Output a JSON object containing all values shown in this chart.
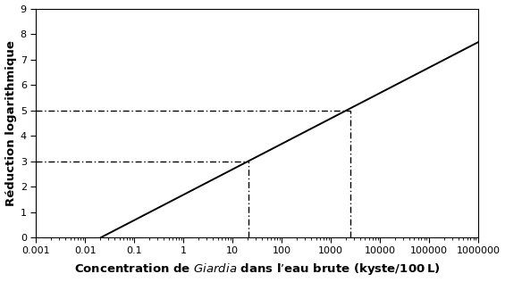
{
  "ylabel": "Réduction logarithmique",
  "xmin": 0.001,
  "xmax": 1000000,
  "ymin": 0,
  "ymax": 9,
  "yticks": [
    0,
    1,
    2,
    3,
    4,
    5,
    6,
    7,
    8,
    9
  ],
  "xtick_labels": [
    "0.001",
    "0.01",
    "0.1",
    "1",
    "10",
    "100",
    "1000",
    "10000",
    "100000",
    "1000000"
  ],
  "xtick_values": [
    0.001,
    0.01,
    0.1,
    1,
    10,
    100,
    1000,
    10000,
    100000,
    1000000
  ],
  "line_x_start": 0.021,
  "line_x_end": 1000000,
  "line_color": "#000000",
  "line_width": 1.4,
  "hline1_y": 3,
  "hline1_x_end": 21,
  "hline2_y": 5,
  "hline2_x_end": 2500,
  "vline1_x": 21,
  "vline2_x": 2500,
  "dash_color": "#000000",
  "dash_linewidth": 1.0,
  "background_color": "#ffffff",
  "label_fontsize": 9.5,
  "tick_fontsize": 8.0,
  "ylabel_fontsize": 9.5
}
